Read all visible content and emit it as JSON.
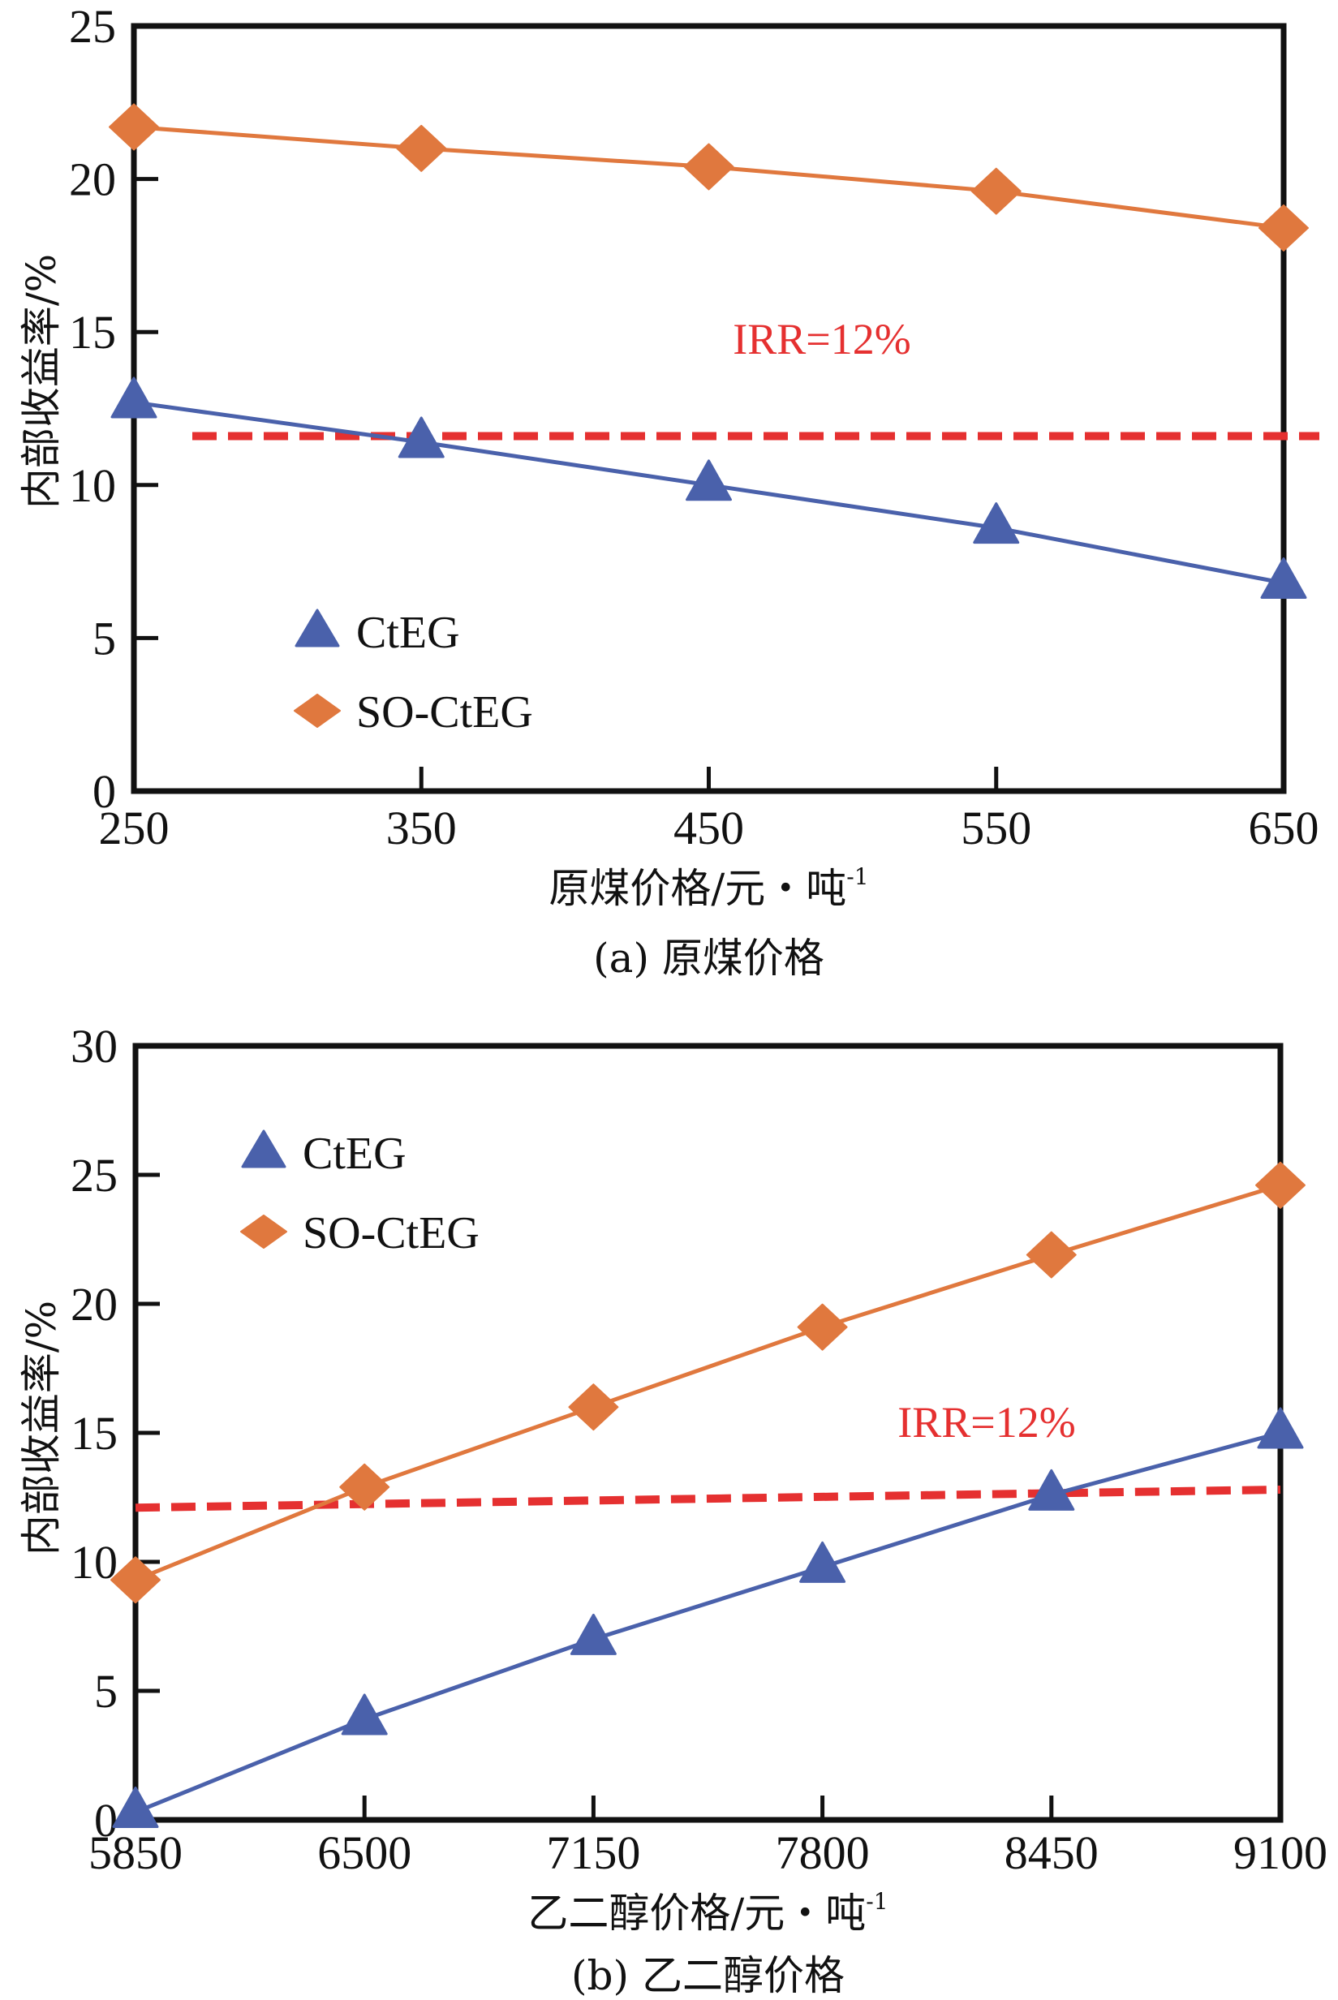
{
  "chart_data": [
    {
      "id": "a",
      "type": "line",
      "caption": "(a) 原煤价格",
      "xlabel": "原煤价格/元・吨",
      "xlabel_sup": "-1",
      "ylabel": "内部收益率/%",
      "x": [
        250,
        350,
        450,
        550,
        650
      ],
      "xticks": [
        "250",
        "350",
        "450",
        "550",
        "650"
      ],
      "xlim": [
        250,
        650
      ],
      "ylim": [
        0,
        25
      ],
      "yticks": [
        0,
        5,
        10,
        15,
        20,
        25
      ],
      "yticklabels": [
        "0",
        "5",
        "10",
        "15",
        "20",
        "25"
      ],
      "grid": false,
      "legend_position": "lower-left",
      "series": [
        {
          "name": "CtEG",
          "marker": "triangle",
          "color": "#4a61ab",
          "values": [
            12.7,
            11.4,
            10.0,
            8.6,
            6.8
          ]
        },
        {
          "name": "SO-CtEG",
          "marker": "diamond",
          "color": "#e0783e",
          "values": [
            21.7,
            21.0,
            20.4,
            19.6,
            18.4
          ]
        }
      ],
      "reference_line": {
        "label": "IRR=12%",
        "value": 12,
        "drawn_y": [
          11.6,
          11.6
        ],
        "x_range": [
          270,
          663
        ],
        "color": "#e53030",
        "style": "dashed"
      }
    },
    {
      "id": "b",
      "type": "line",
      "caption": "(b) 乙二醇价格",
      "xlabel": "乙二醇价格/元・吨",
      "xlabel_sup": "-1",
      "ylabel": "内部收益率/%",
      "x": [
        5850,
        6500,
        7150,
        7800,
        8450,
        9100
      ],
      "xticks": [
        "5850",
        "6500",
        "7150",
        "7800",
        "8450",
        "9100"
      ],
      "xlim": [
        5850,
        9100
      ],
      "ylim": [
        0,
        30
      ],
      "yticks": [
        0,
        5,
        10,
        15,
        20,
        25,
        30
      ],
      "yticklabels": [
        "0",
        "5",
        "10",
        "15",
        "20",
        "25",
        "30"
      ],
      "grid": false,
      "legend_position": "top-left",
      "series": [
        {
          "name": "CtEG",
          "marker": "triangle",
          "color": "#4a61ab",
          "values": [
            0.3,
            3.9,
            7.0,
            9.8,
            12.6,
            15.0
          ]
        },
        {
          "name": "SO-CtEG",
          "marker": "diamond",
          "color": "#e0783e",
          "values": [
            9.3,
            12.9,
            16.0,
            19.1,
            21.9,
            24.6
          ]
        }
      ],
      "reference_line": {
        "label": "IRR=12%",
        "value": 12,
        "drawn_y": [
          12.1,
          12.8
        ],
        "x_range": [
          5850,
          9100
        ],
        "color": "#e53030",
        "style": "dashed"
      }
    }
  ]
}
